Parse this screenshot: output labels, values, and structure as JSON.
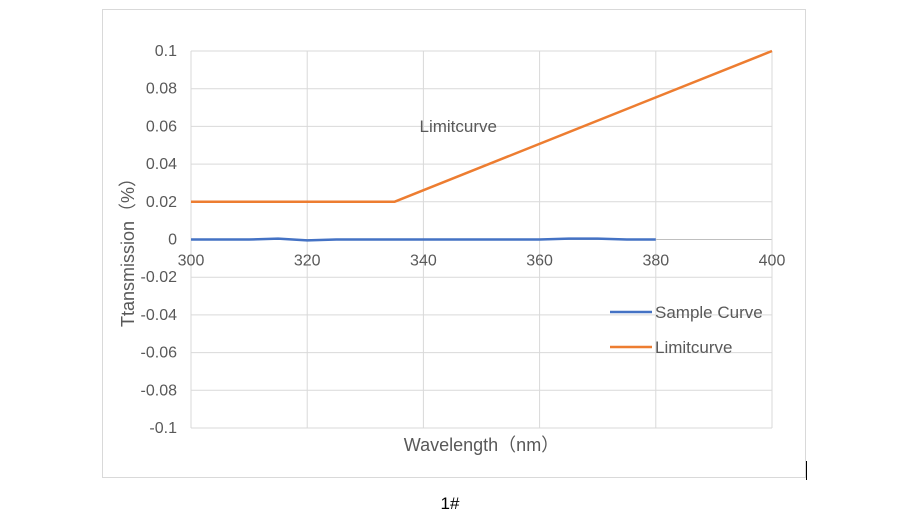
{
  "chart_data": {
    "type": "line",
    "ylabel": "Ttansmission（%）",
    "xlabel": "Wavelength（nm）",
    "xlim": [
      300,
      400
    ],
    "ylim": [
      -0.1,
      0.1
    ],
    "x_ticks": [
      300,
      320,
      340,
      360,
      380,
      400
    ],
    "y_ticks": [
      0.1,
      0.08,
      0.06,
      0.04,
      0.02,
      0,
      -0.02,
      -0.04,
      -0.06,
      -0.08,
      -0.1
    ],
    "y_tick_labels": [
      "0.1",
      "0.08",
      "0.06",
      "0.04",
      "0.02",
      "0",
      "-0.02",
      "-0.04",
      "-0.06",
      "-0.08",
      "-0.1"
    ],
    "vertical_grid_x": [
      300,
      320,
      340,
      360,
      380,
      400
    ],
    "grid": true,
    "legend_position": "right",
    "series": [
      {
        "name": "Sample Curve",
        "color": "#4472c4",
        "x": [
          300,
          305,
          310,
          315,
          320,
          325,
          330,
          335,
          340,
          345,
          350,
          355,
          360,
          365,
          370,
          375,
          380
        ],
        "y": [
          0,
          0,
          0,
          0.0005,
          -0.0005,
          0,
          0,
          0,
          0,
          0,
          0,
          0,
          0,
          0.0005,
          0.0005,
          0,
          0
        ]
      },
      {
        "name": "Limitcurve",
        "color": "#ed7d31",
        "x": [
          300,
          335,
          400
        ],
        "y": [
          0.02,
          0.02,
          0.1
        ]
      }
    ],
    "annotations": [
      {
        "text": "Limitcurve",
        "x": 346,
        "y": 0.057
      }
    ]
  },
  "caption": "1#"
}
